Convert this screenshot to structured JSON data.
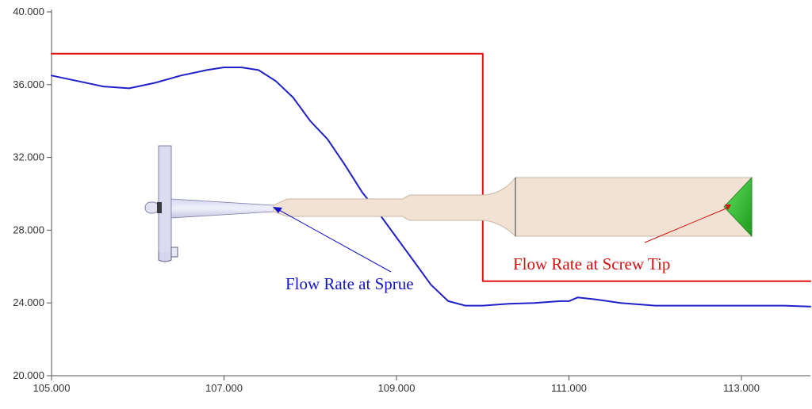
{
  "chart_data": {
    "type": "line",
    "title": "",
    "xlabel": "",
    "ylabel": "",
    "xlim": [
      105.0,
      113.8
    ],
    "ylim": [
      20.0,
      40.0
    ],
    "x_ticks": [
      105,
      107,
      109,
      111,
      113
    ],
    "x_tick_labels": [
      "105.000",
      "107.000",
      "109.000",
      "111.000",
      "113.000"
    ],
    "y_ticks": [
      20,
      24,
      28,
      32,
      36,
      40
    ],
    "y_tick_labels": [
      "20.000",
      "24.000",
      "28.000",
      "32.000",
      "36.000",
      "40.000"
    ],
    "grid": false,
    "legend": "none",
    "series": [
      {
        "color": "#2020c8",
        "x": [
          105.0,
          105.3,
          105.6,
          105.9,
          106.2,
          106.5,
          106.8,
          107.0,
          107.2,
          107.4,
          107.6,
          107.8,
          108.0,
          108.2,
          108.4,
          108.6,
          108.8,
          109.0,
          109.2,
          109.4,
          109.6,
          109.8,
          110.0,
          110.3,
          110.6,
          110.9,
          111.0,
          111.1,
          111.3,
          111.6,
          112.0,
          112.5,
          113.0,
          113.5,
          113.8
        ],
        "y": [
          36.5,
          36.2,
          35.9,
          35.8,
          36.1,
          36.5,
          36.8,
          36.95,
          36.95,
          36.8,
          36.2,
          35.3,
          34.0,
          33.0,
          31.6,
          30.1,
          28.9,
          27.6,
          26.3,
          25.0,
          24.1,
          23.85,
          23.85,
          23.95,
          24.0,
          24.1,
          24.1,
          24.3,
          24.2,
          24.0,
          23.85,
          23.85,
          23.85,
          23.85,
          23.8
        ]
      },
      {
        "color": "#e01010",
        "x": [
          105.0,
          110.0,
          110.0,
          113.8
        ],
        "y": [
          37.7,
          37.7,
          25.2,
          25.2
        ]
      }
    ],
    "annotations": [
      {
        "text": "Flow Rate at Sprue",
        "color": "#1414c8"
      },
      {
        "text": "Flow Rate at Screw Tip",
        "color": "#d41010"
      }
    ]
  }
}
